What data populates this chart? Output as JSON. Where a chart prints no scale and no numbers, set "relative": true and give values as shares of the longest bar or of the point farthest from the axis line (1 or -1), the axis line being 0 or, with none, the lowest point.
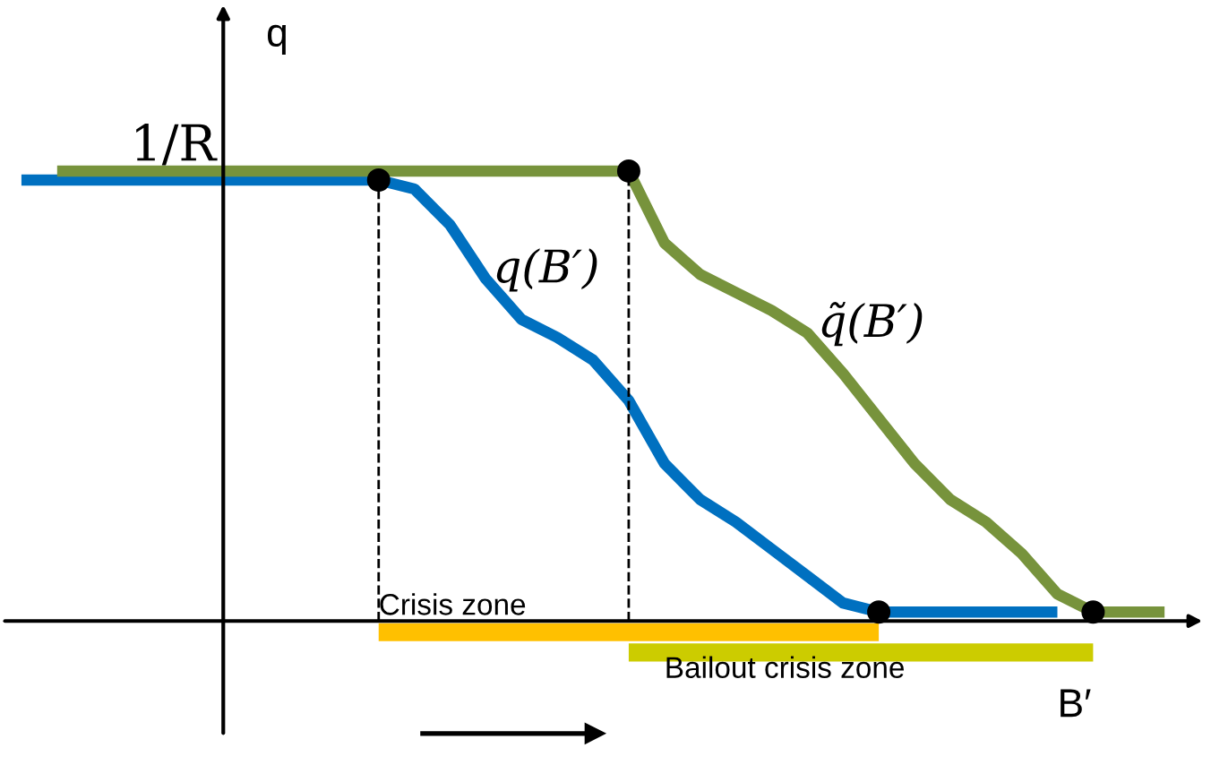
{
  "chart_data": {
    "type": "line",
    "relative": true,
    "xlabel": "B′",
    "ylabel": "q",
    "categories": [
      null,
      null,
      null,
      null,
      null,
      null,
      null,
      null,
      null,
      null,
      null,
      null,
      null,
      null,
      null,
      null,
      null,
      null,
      null,
      null,
      null,
      null,
      null,
      null,
      null,
      null,
      null,
      null,
      null,
      null,
      null,
      null,
      null
    ],
    "series": [
      {
        "name": "q(B′)",
        "color": "#0070c0",
        "values": [
          0.98,
          0.98,
          0.98,
          0.98,
          0.98,
          0.98,
          0.98,
          0.98,
          0.98,
          0.98,
          0.98,
          0.96,
          0.88,
          0.76,
          0.67,
          0.63,
          0.58,
          0.49,
          0.35,
          0.27,
          0.22,
          0.16,
          0.1,
          0.04,
          0.02,
          0.02,
          0.02,
          0.02,
          0.02,
          0.02,
          null,
          null,
          null
        ]
      },
      {
        "name": "q̃(B′)",
        "color": "#77933c",
        "values": [
          null,
          1.0,
          1.0,
          1.0,
          1.0,
          1.0,
          1.0,
          1.0,
          1.0,
          1.0,
          1.0,
          1.0,
          1.0,
          1.0,
          1.0,
          1.0,
          1.0,
          1.0,
          0.84,
          0.77,
          0.73,
          0.69,
          0.64,
          0.55,
          0.45,
          0.35,
          0.27,
          0.22,
          0.15,
          0.06,
          0.02,
          0.02,
          0.02
        ]
      }
    ],
    "annotations": [
      "1/R",
      "Crisis zone",
      "Bailout crisis zone"
    ]
  }
}
